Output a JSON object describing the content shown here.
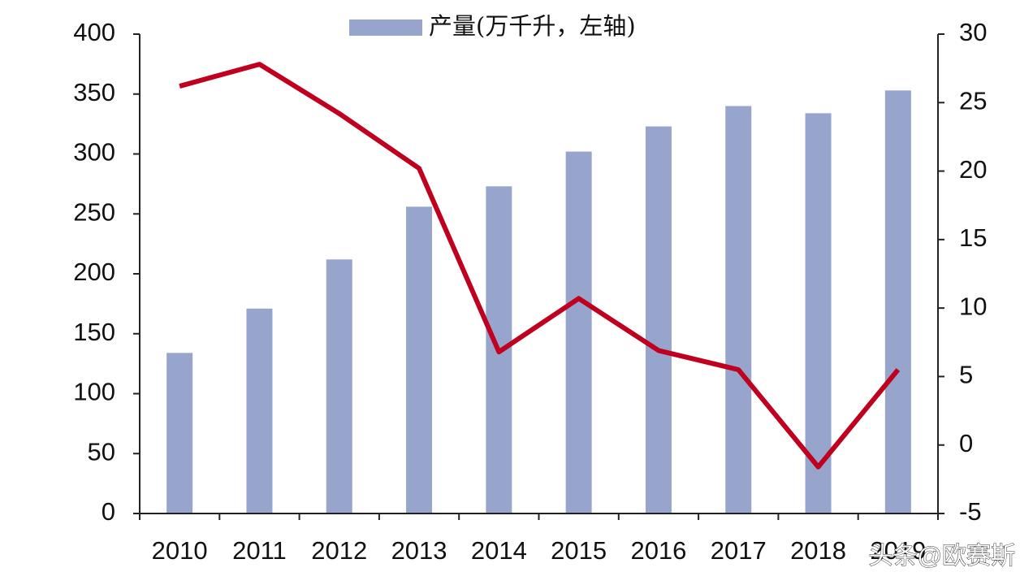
{
  "chart_data": {
    "type": "bar",
    "categories": [
      "2010",
      "2011",
      "2012",
      "2013",
      "2014",
      "2015",
      "2016",
      "2017",
      "2018",
      "2019"
    ],
    "series": [
      {
        "name": "产量(万千升，左轴)",
        "type": "bar",
        "color": "#97a5cc",
        "values": [
          134,
          171,
          212,
          256,
          273,
          302,
          323,
          340,
          334,
          353
        ]
      },
      {
        "type": "line",
        "axis": "y2",
        "color": "#c0001f",
        "values": [
          26.2,
          27.8,
          24.2,
          20.2,
          6.8,
          10.7,
          6.9,
          5.5,
          -1.6,
          5.5
        ]
      }
    ],
    "ylim": [
      0,
      400
    ],
    "yticks": [
      0,
      50,
      100,
      150,
      200,
      250,
      300,
      350,
      400
    ],
    "y2lim": [
      -5,
      30
    ],
    "y2ticks": [
      -5,
      0,
      5,
      10,
      15,
      20,
      25,
      30
    ],
    "legend": "top",
    "watermark": "头条@欧赛斯"
  }
}
